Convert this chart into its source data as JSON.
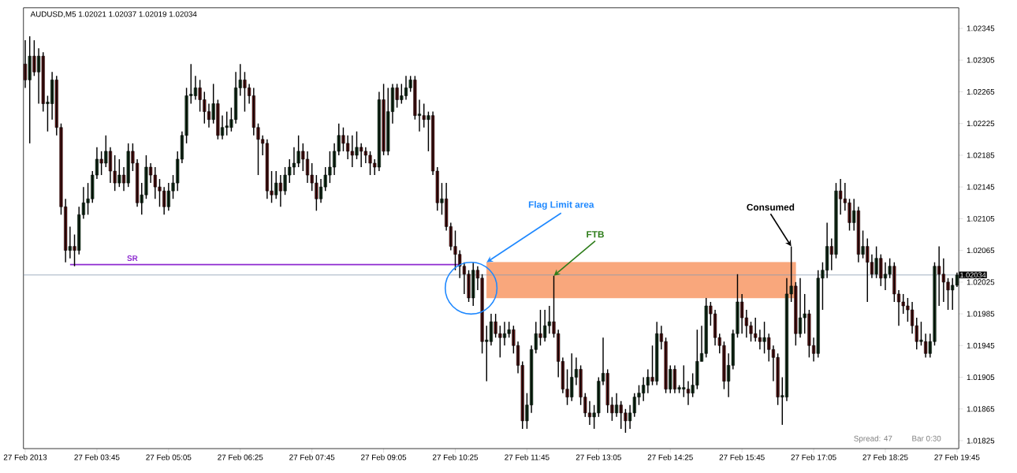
{
  "chart_data": {
    "type": "candlestick",
    "title": "AUDUSD,M5 1.02021 1.02037 1.02019 1.02034",
    "x": [
      "2013-02-27T02:25",
      "2013-02-27T02:30",
      "2013-02-27T02:35",
      "2013-02-27T02:40",
      "2013-02-27T02:45",
      "2013-02-27T02:50",
      "2013-02-27T02:55",
      "2013-02-27T03:00",
      "2013-02-27T03:05",
      "2013-02-27T03:10",
      "2013-02-27T03:15",
      "2013-02-27T03:20",
      "2013-02-27T03:25",
      "2013-02-27T03:30",
      "2013-02-27T03:35",
      "2013-02-27T03:40",
      "2013-02-27T03:45",
      "2013-02-27T03:50",
      "2013-02-27T03:55",
      "2013-02-27T04:00",
      "2013-02-27T04:05",
      "2013-02-27T04:10",
      "2013-02-27T04:15",
      "2013-02-27T04:20",
      "2013-02-27T04:25",
      "2013-02-27T04:30",
      "2013-02-27T04:35",
      "2013-02-27T04:40",
      "2013-02-27T04:45",
      "2013-02-27T04:50",
      "2013-02-27T04:55",
      "2013-02-27T05:00",
      "2013-02-27T05:05",
      "2013-02-27T05:10",
      "2013-02-27T05:15",
      "2013-02-27T05:20",
      "2013-02-27T05:25",
      "2013-02-27T05:30",
      "2013-02-27T05:35",
      "2013-02-27T05:40",
      "2013-02-27T05:45",
      "2013-02-27T05:50",
      "2013-02-27T05:55",
      "2013-02-27T06:00",
      "2013-02-27T06:05",
      "2013-02-27T06:10",
      "2013-02-27T06:15",
      "2013-02-27T06:20",
      "2013-02-27T06:25",
      "2013-02-27T06:30",
      "2013-02-27T06:35",
      "2013-02-27T06:40",
      "2013-02-27T06:45",
      "2013-02-27T06:50",
      "2013-02-27T06:55",
      "2013-02-27T07:00",
      "2013-02-27T07:05",
      "2013-02-27T07:10",
      "2013-02-27T07:15",
      "2013-02-27T07:20",
      "2013-02-27T07:25",
      "2013-02-27T07:30",
      "2013-02-27T07:35",
      "2013-02-27T07:40",
      "2013-02-27T07:45",
      "2013-02-27T07:50",
      "2013-02-27T07:55",
      "2013-02-27T08:00",
      "2013-02-27T08:05",
      "2013-02-27T08:10",
      "2013-02-27T08:15",
      "2013-02-27T08:20",
      "2013-02-27T08:25",
      "2013-02-27T08:30",
      "2013-02-27T08:35",
      "2013-02-27T08:40",
      "2013-02-27T08:45",
      "2013-02-27T08:50",
      "2013-02-27T08:55",
      "2013-02-27T09:00",
      "2013-02-27T09:05",
      "2013-02-27T09:10",
      "2013-02-27T09:15",
      "2013-02-27T09:20",
      "2013-02-27T09:25",
      "2013-02-27T09:30",
      "2013-02-27T09:35",
      "2013-02-27T09:40",
      "2013-02-27T09:45",
      "2013-02-27T09:50",
      "2013-02-27T09:55",
      "2013-02-27T10:00",
      "2013-02-27T10:05",
      "2013-02-27T10:10",
      "2013-02-27T10:15",
      "2013-02-27T10:20",
      "2013-02-27T10:25",
      "2013-02-27T10:30",
      "2013-02-27T10:35",
      "2013-02-27T10:40",
      "2013-02-27T10:45",
      "2013-02-27T10:50",
      "2013-02-27T10:55",
      "2013-02-27T11:00",
      "2013-02-27T11:05",
      "2013-02-27T11:10",
      "2013-02-27T11:15",
      "2013-02-27T11:20",
      "2013-02-27T11:25",
      "2013-02-27T11:30",
      "2013-02-27T11:35",
      "2013-02-27T11:40",
      "2013-02-27T11:45",
      "2013-02-27T11:50",
      "2013-02-27T11:55",
      "2013-02-27T12:00",
      "2013-02-27T12:05",
      "2013-02-27T12:10",
      "2013-02-27T12:15",
      "2013-02-27T12:20",
      "2013-02-27T12:25",
      "2013-02-27T12:30",
      "2013-02-27T12:35",
      "2013-02-27T12:40",
      "2013-02-27T12:45",
      "2013-02-27T12:50",
      "2013-02-27T12:55",
      "2013-02-27T13:00",
      "2013-02-27T13:05",
      "2013-02-27T13:10",
      "2013-02-27T13:15",
      "2013-02-27T13:20",
      "2013-02-27T13:25",
      "2013-02-27T13:30",
      "2013-02-27T13:35",
      "2013-02-27T13:40",
      "2013-02-27T13:45",
      "2013-02-27T13:50",
      "2013-02-27T13:55",
      "2013-02-27T14:00",
      "2013-02-27T14:05",
      "2013-02-27T14:10",
      "2013-02-27T14:15",
      "2013-02-27T14:20",
      "2013-02-27T14:25",
      "2013-02-27T14:30",
      "2013-02-27T14:35",
      "2013-02-27T14:40",
      "2013-02-27T14:45",
      "2013-02-27T14:50",
      "2013-02-27T14:55",
      "2013-02-27T15:00",
      "2013-02-27T15:05",
      "2013-02-27T15:10",
      "2013-02-27T15:15",
      "2013-02-27T15:20",
      "2013-02-27T15:25",
      "2013-02-27T15:30",
      "2013-02-27T15:35",
      "2013-02-27T15:40",
      "2013-02-27T15:45",
      "2013-02-27T15:50",
      "2013-02-27T15:55",
      "2013-02-27T16:00",
      "2013-02-27T16:05",
      "2013-02-27T16:10",
      "2013-02-27T16:15",
      "2013-02-27T16:20",
      "2013-02-27T16:25",
      "2013-02-27T16:30",
      "2013-02-27T16:35",
      "2013-02-27T16:40",
      "2013-02-27T16:45",
      "2013-02-27T16:50",
      "2013-02-27T16:55",
      "2013-02-27T17:00",
      "2013-02-27T17:05",
      "2013-02-27T17:10",
      "2013-02-27T17:15",
      "2013-02-27T17:20",
      "2013-02-27T17:25",
      "2013-02-27T17:30",
      "2013-02-27T17:35",
      "2013-02-27T17:40",
      "2013-02-27T17:45",
      "2013-02-27T17:50",
      "2013-02-27T17:55",
      "2013-02-27T18:00",
      "2013-02-27T18:05",
      "2013-02-27T18:10",
      "2013-02-27T18:15",
      "2013-02-27T18:20",
      "2013-02-27T18:25",
      "2013-02-27T18:30",
      "2013-02-27T18:35",
      "2013-02-27T18:40",
      "2013-02-27T18:45",
      "2013-02-27T18:50",
      "2013-02-27T18:55",
      "2013-02-27T19:00",
      "2013-02-27T19:05",
      "2013-02-27T19:10",
      "2013-02-27T19:15",
      "2013-02-27T19:20",
      "2013-02-27T19:25",
      "2013-02-27T19:30",
      "2013-02-27T19:35",
      "2013-02-27T19:40",
      "2013-02-27T19:45"
    ],
    "ohlc": [
      [
        1.023,
        1.0233,
        1.0227,
        1.0228
      ],
      [
        1.0228,
        1.02335,
        1.022,
        1.0231
      ],
      [
        1.0231,
        1.0233,
        1.02285,
        1.0229
      ],
      [
        1.0229,
        1.0232,
        1.0225,
        1.0231
      ],
      [
        1.0231,
        1.02315,
        1.0224,
        1.0225
      ],
      [
        1.0225,
        1.0226,
        1.02215,
        1.0225
      ],
      [
        1.0225,
        1.0229,
        1.0223,
        1.0228
      ],
      [
        1.0228,
        1.02285,
        1.0221,
        1.0222
      ],
      [
        1.0222,
        1.02225,
        1.0211,
        1.0212
      ],
      [
        1.0212,
        1.0213,
        1.0205,
        1.02065
      ],
      [
        1.02065,
        1.02095,
        1.02055,
        1.0207
      ],
      [
        1.0207,
        1.02085,
        1.02045,
        1.02065
      ],
      [
        1.02065,
        1.0212,
        1.0206,
        1.0211
      ],
      [
        1.0211,
        1.02145,
        1.02105,
        1.02125
      ],
      [
        1.02125,
        1.0215,
        1.0211,
        1.0213
      ],
      [
        1.0213,
        1.02165,
        1.02125,
        1.0216
      ],
      [
        1.0216,
        1.02195,
        1.02155,
        1.0218
      ],
      [
        1.0218,
        1.0219,
        1.0216,
        1.02175
      ],
      [
        1.02175,
        1.0221,
        1.0217,
        1.0219
      ],
      [
        1.0219,
        1.02195,
        1.0215,
        1.02165
      ],
      [
        1.02165,
        1.02185,
        1.0214,
        1.0215
      ],
      [
        1.0215,
        1.0218,
        1.02145,
        1.0216
      ],
      [
        1.0216,
        1.0217,
        1.0214,
        1.0215
      ],
      [
        1.0215,
        1.022,
        1.02145,
        1.0219
      ],
      [
        1.0219,
        1.022,
        1.02165,
        1.02175
      ],
      [
        1.02175,
        1.0218,
        1.0212,
        1.02125
      ],
      [
        1.02125,
        1.0215,
        1.0211,
        1.02135
      ],
      [
        1.02135,
        1.02185,
        1.0213,
        1.0217
      ],
      [
        1.0217,
        1.02175,
        1.0215,
        1.0216
      ],
      [
        1.0216,
        1.0217,
        1.0213,
        1.02145
      ],
      [
        1.02145,
        1.02155,
        1.0212,
        1.0214
      ],
      [
        1.0214,
        1.02145,
        1.0211,
        1.0212
      ],
      [
        1.0212,
        1.0215,
        1.02115,
        1.0214
      ],
      [
        1.0214,
        1.0216,
        1.0213,
        1.0215
      ],
      [
        1.0215,
        1.0219,
        1.0214,
        1.0218
      ],
      [
        1.0218,
        1.02215,
        1.02175,
        1.0221
      ],
      [
        1.0221,
        1.0227,
        1.022,
        1.0226
      ],
      [
        1.0226,
        1.023,
        1.0225,
        1.0226
      ],
      [
        1.0226,
        1.02285,
        1.02255,
        1.0227
      ],
      [
        1.0227,
        1.0228,
        1.0224,
        1.02255
      ],
      [
        1.02255,
        1.02265,
        1.02225,
        1.0224
      ],
      [
        1.0224,
        1.0225,
        1.0222,
        1.0223
      ],
      [
        1.0223,
        1.02275,
        1.02225,
        1.0225
      ],
      [
        1.0225,
        1.02255,
        1.02205,
        1.0221
      ],
      [
        1.0221,
        1.02235,
        1.02205,
        1.0222
      ],
      [
        1.0222,
        1.0224,
        1.0221,
        1.0222
      ],
      [
        1.0222,
        1.02245,
        1.02215,
        1.0223
      ],
      [
        1.0223,
        1.0229,
        1.02225,
        1.0227
      ],
      [
        1.0227,
        1.023,
        1.0226,
        1.0228
      ],
      [
        1.0228,
        1.0229,
        1.0224,
        1.0227
      ],
      [
        1.0227,
        1.02275,
        1.0225,
        1.0226
      ],
      [
        1.0226,
        1.0227,
        1.0221,
        1.0222
      ],
      [
        1.0222,
        1.02225,
        1.0216,
        1.02205
      ],
      [
        1.02205,
        1.0221,
        1.02185,
        1.022
      ],
      [
        1.022,
        1.02205,
        1.0213,
        1.0214
      ],
      [
        1.0214,
        1.02165,
        1.02125,
        1.02135
      ],
      [
        1.02135,
        1.02165,
        1.0213,
        1.0215
      ],
      [
        1.0215,
        1.0216,
        1.0212,
        1.0214
      ],
      [
        1.0214,
        1.0217,
        1.02135,
        1.0216
      ],
      [
        1.0216,
        1.0218,
        1.0215,
        1.0217
      ],
      [
        1.0217,
        1.02195,
        1.0216,
        1.02175
      ],
      [
        1.02175,
        1.0221,
        1.0217,
        1.0219
      ],
      [
        1.0219,
        1.022,
        1.02165,
        1.0218
      ],
      [
        1.0218,
        1.0219,
        1.0215,
        1.0216
      ],
      [
        1.0216,
        1.02175,
        1.0214,
        1.0215
      ],
      [
        1.0215,
        1.0216,
        1.02115,
        1.0213
      ],
      [
        1.0213,
        1.02155,
        1.02125,
        1.02145
      ],
      [
        1.02145,
        1.0217,
        1.0214,
        1.0216
      ],
      [
        1.0216,
        1.0219,
        1.0215,
        1.0217
      ],
      [
        1.0217,
        1.022,
        1.0216,
        1.0219
      ],
      [
        1.0219,
        1.02225,
        1.02185,
        1.0221
      ],
      [
        1.0221,
        1.0222,
        1.0219,
        1.022
      ],
      [
        1.022,
        1.0221,
        1.0218,
        1.0219
      ],
      [
        1.0219,
        1.0221,
        1.0217,
        1.02185
      ],
      [
        1.02185,
        1.02215,
        1.0218,
        1.02195
      ],
      [
        1.02195,
        1.022,
        1.0217,
        1.0219
      ],
      [
        1.0219,
        1.02195,
        1.02175,
        1.02185
      ],
      [
        1.02185,
        1.0219,
        1.0216,
        1.02175
      ],
      [
        1.02175,
        1.0218,
        1.0216,
        1.0217
      ],
      [
        1.0217,
        1.02265,
        1.02165,
        1.02255
      ],
      [
        1.02255,
        1.02275,
        1.02185,
        1.0219
      ],
      [
        1.0219,
        1.0227,
        1.02185,
        1.0224
      ],
      [
        1.0224,
        1.02275,
        1.02225,
        1.0227
      ],
      [
        1.0227,
        1.02275,
        1.02245,
        1.02255
      ],
      [
        1.02255,
        1.02275,
        1.0225,
        1.0226
      ],
      [
        1.0226,
        1.02285,
        1.02255,
        1.0227
      ],
      [
        1.0227,
        1.02285,
        1.02265,
        1.0228
      ],
      [
        1.0228,
        1.02285,
        1.0223,
        1.02235
      ],
      [
        1.02235,
        1.02255,
        1.02215,
        1.02235
      ],
      [
        1.02235,
        1.0225,
        1.0222,
        1.0223
      ],
      [
        1.0223,
        1.0224,
        1.0219,
        1.02235
      ],
      [
        1.02235,
        1.0224,
        1.0216,
        1.02165
      ],
      [
        1.02165,
        1.0217,
        1.02115,
        1.02125
      ],
      [
        1.02125,
        1.0215,
        1.0211,
        1.0213
      ],
      [
        1.0213,
        1.0215,
        1.0209,
        1.02095
      ],
      [
        1.02095,
        1.021,
        1.02065,
        1.0207
      ],
      [
        1.0207,
        1.0209,
        1.0204,
        1.0206
      ],
      [
        1.0206,
        1.02065,
        1.0203,
        1.02045
      ],
      [
        1.02045,
        1.0205,
        1.0201,
        1.02035
      ],
      [
        1.02035,
        1.0204,
        1.02,
        1.02005
      ],
      [
        1.02005,
        1.0205,
        1.01995,
        1.0204
      ],
      [
        1.0204,
        1.02045,
        1.02015,
        1.0203
      ],
      [
        1.0203,
        1.02035,
        1.01935,
        1.0195
      ],
      [
        1.0195,
        1.0197,
        1.019,
        1.0195
      ],
      [
        1.0195,
        1.01985,
        1.01945,
        1.01975
      ],
      [
        1.01975,
        1.01985,
        1.01955,
        1.0196
      ],
      [
        1.0196,
        1.0197,
        1.0193,
        1.01955
      ],
      [
        1.01955,
        1.01975,
        1.01945,
        1.0196
      ],
      [
        1.0196,
        1.01975,
        1.01955,
        1.01965
      ],
      [
        1.01965,
        1.0197,
        1.01935,
        1.01945
      ],
      [
        1.01945,
        1.0195,
        1.0191,
        1.0192
      ],
      [
        1.0192,
        1.01925,
        1.0184,
        1.0185
      ],
      [
        1.0185,
        1.01885,
        1.0184,
        1.0187
      ],
      [
        1.0187,
        1.01945,
        1.0186,
        1.0194
      ],
      [
        1.0194,
        1.01975,
        1.01935,
        1.0196
      ],
      [
        1.0196,
        1.0199,
        1.01945,
        1.01955
      ],
      [
        1.01955,
        1.0199,
        1.0195,
        1.0197
      ],
      [
        1.0197,
        1.01995,
        1.0196,
        1.01975
      ],
      [
        1.01975,
        1.02033,
        1.01955,
        1.0196
      ],
      [
        1.0196,
        1.01965,
        1.01905,
        1.01925
      ],
      [
        1.01925,
        1.0193,
        1.01885,
        1.0189
      ],
      [
        1.0189,
        1.01915,
        1.0187,
        1.0188
      ],
      [
        1.0188,
        1.01935,
        1.01875,
        1.01905
      ],
      [
        1.01905,
        1.0193,
        1.01895,
        1.01915
      ],
      [
        1.01915,
        1.0192,
        1.0187,
        1.0188
      ],
      [
        1.0188,
        1.01885,
        1.01855,
        1.0186
      ],
      [
        1.0186,
        1.01875,
        1.01845,
        1.01855
      ],
      [
        1.01855,
        1.0187,
        1.0184,
        1.0186
      ],
      [
        1.0186,
        1.01905,
        1.01855,
        1.019
      ],
      [
        1.019,
        1.01955,
        1.01895,
        1.0191
      ],
      [
        1.0191,
        1.01915,
        1.0186,
        1.0187
      ],
      [
        1.0187,
        1.0188,
        1.0185,
        1.0186
      ],
      [
        1.0186,
        1.01885,
        1.01855,
        1.0187
      ],
      [
        1.0187,
        1.01875,
        1.0184,
        1.0186
      ],
      [
        1.0186,
        1.01865,
        1.01835,
        1.0185
      ],
      [
        1.0185,
        1.0187,
        1.0184,
        1.0186
      ],
      [
        1.0186,
        1.01885,
        1.01855,
        1.0188
      ],
      [
        1.0188,
        1.01895,
        1.0187,
        1.01885
      ],
      [
        1.01885,
        1.01905,
        1.01875,
        1.01895
      ],
      [
        1.01895,
        1.01915,
        1.01885,
        1.01905
      ],
      [
        1.01905,
        1.01945,
        1.01895,
        1.019
      ],
      [
        1.019,
        1.01975,
        1.01895,
        1.0196
      ],
      [
        1.0196,
        1.0197,
        1.0194,
        1.0195
      ],
      [
        1.0195,
        1.01955,
        1.01885,
        1.0189
      ],
      [
        1.0189,
        1.0192,
        1.01885,
        1.01915
      ],
      [
        1.01915,
        1.0192,
        1.01885,
        1.0189
      ],
      [
        1.0189,
        1.01895,
        1.01885,
        1.0189
      ],
      [
        1.0189,
        1.0192,
        1.0188,
        1.0189
      ],
      [
        1.0189,
        1.019,
        1.0187,
        1.01885
      ],
      [
        1.01885,
        1.0191,
        1.0188,
        1.01895
      ],
      [
        1.01895,
        1.01965,
        1.0189,
        1.01925
      ],
      [
        1.01925,
        1.0197,
        1.01925,
        1.01935
      ],
      [
        1.01935,
        1.02005,
        1.0193,
        1.01995
      ],
      [
        1.01995,
        1.02,
        1.0197,
        1.01985
      ],
      [
        1.01985,
        1.0199,
        1.01945,
        1.01955
      ],
      [
        1.01955,
        1.0196,
        1.01935,
        1.01945
      ],
      [
        1.01945,
        1.0195,
        1.0189,
        1.019
      ],
      [
        1.019,
        1.01935,
        1.0188,
        1.0192
      ],
      [
        1.0192,
        1.01965,
        1.01915,
        1.0196
      ],
      [
        1.0196,
        1.02035,
        1.01955,
        1.02
      ],
      [
        1.02,
        1.0201,
        1.0196,
        1.0198
      ],
      [
        1.0198,
        1.0199,
        1.01955,
        1.0197
      ],
      [
        1.0197,
        1.01975,
        1.0195,
        1.0196
      ],
      [
        1.0196,
        1.0198,
        1.0195,
        1.01955
      ],
      [
        1.01955,
        1.01965,
        1.0194,
        1.0195
      ],
      [
        1.0195,
        1.01975,
        1.01935,
        1.01955
      ],
      [
        1.01955,
        1.0196,
        1.01925,
        1.0194
      ],
      [
        1.0194,
        1.01945,
        1.019,
        1.0193
      ],
      [
        1.0193,
        1.01935,
        1.0187,
        1.0188
      ],
      [
        1.0188,
        1.01905,
        1.01845,
        1.0188
      ],
      [
        1.0188,
        1.0203,
        1.01875,
        1.0201
      ],
      [
        1.0201,
        1.0207,
        1.02,
        1.0202
      ],
      [
        1.0202,
        1.02025,
        1.01945,
        1.0196
      ],
      [
        1.0196,
        1.0203,
        1.01955,
        1.0198
      ],
      [
        1.0198,
        1.0201,
        1.0196,
        1.01985
      ],
      [
        1.01985,
        1.0199,
        1.0193,
        1.01945
      ],
      [
        1.01945,
        1.01955,
        1.01925,
        1.01935
      ],
      [
        1.01935,
        1.0204,
        1.0193,
        1.0203
      ],
      [
        1.0203,
        1.0205,
        1.0199,
        1.0204
      ],
      [
        1.0204,
        1.021,
        1.0203,
        1.0207
      ],
      [
        1.0207,
        1.0208,
        1.0204,
        1.0206
      ],
      [
        1.0206,
        1.0215,
        1.02055,
        1.0214
      ],
      [
        1.0214,
        1.02155,
        1.0211,
        1.0213
      ],
      [
        1.0213,
        1.0215,
        1.02115,
        1.02125
      ],
      [
        1.02125,
        1.0213,
        1.0209,
        1.021
      ],
      [
        1.021,
        1.0213,
        1.0209,
        1.02115
      ],
      [
        1.02115,
        1.0212,
        1.0205,
        1.0206
      ],
      [
        1.0206,
        1.0209,
        1.02055,
        1.0207
      ],
      [
        1.0207,
        1.0208,
        1.02,
        1.0205
      ],
      [
        1.0205,
        1.0206,
        1.0203,
        1.02035
      ],
      [
        1.02035,
        1.0207,
        1.0203,
        1.02055
      ],
      [
        1.02055,
        1.0206,
        1.0202,
        1.0203
      ],
      [
        1.0203,
        1.0205,
        1.02015,
        1.02035
      ],
      [
        1.02035,
        1.02055,
        1.0203,
        1.02045
      ],
      [
        1.02045,
        1.0205,
        1.02,
        1.0201
      ],
      [
        1.0201,
        1.02015,
        1.0197,
        1.02
      ],
      [
        1.02,
        1.0201,
        1.01985,
        1.01995
      ],
      [
        1.01995,
        1.02005,
        1.01975,
        1.0199
      ],
      [
        1.0199,
        1.02,
        1.0196,
        1.0197
      ],
      [
        1.0197,
        1.0198,
        1.0194,
        1.0195
      ],
      [
        1.0195,
        1.01975,
        1.01945,
        1.0195
      ],
      [
        1.0195,
        1.0196,
        1.0193,
        1.01935
      ],
      [
        1.01935,
        1.0196,
        1.0193,
        1.0195
      ],
      [
        1.0195,
        1.0205,
        1.01945,
        1.02045
      ],
      [
        1.02045,
        1.0207,
        1.01995,
        1.02035
      ],
      [
        1.02035,
        1.02055,
        1.02,
        1.02025
      ],
      [
        1.02025,
        1.0203,
        1.0199,
        1.02015
      ],
      [
        1.02015,
        1.0203,
        1.0199,
        1.02021
      ],
      [
        1.02021,
        1.02037,
        1.02019,
        1.02034
      ]
    ],
    "series": [
      {
        "type": "line",
        "x": [
          "2013-02-27T11:00",
          "2013-02-27T16:45"
        ],
        "values": [
          null,
          null
        ],
        "lower": [
          1.02005,
          1.02005
        ],
        "upper": [
          1.0205,
          1.0205
        ],
        "color": "#f9a77c"
      },
      {
        "type": "line",
        "name": "SR",
        "x": [
          "2013-02-27T03:15",
          "2013-02-27T10:30"
        ],
        "values": [
          1.02047,
          1.02047
        ],
        "color": "#8e2bd1"
      }
    ],
    "ref_lines": [
      {
        "axis": "y",
        "value": 1.02034,
        "label": "1.02034",
        "color": "#8a9bb0"
      }
    ],
    "annotations": [
      {
        "text": "Flag Limit area",
        "x": "2013-02-27T11:00",
        "y": 1.0205
      },
      {
        "text": "FTB",
        "x": "2013-02-27T12:15",
        "y": 1.02033
      },
      {
        "text": "Consumed",
        "x": "2013-02-27T16:40",
        "y": 1.0207
      },
      "Spread: 47",
      "Bar  0:30"
    ],
    "xlim": [
      "2013-02-27T02:23",
      "2013-02-27T19:47"
    ],
    "ylim": [
      1.01815,
      1.02371
    ],
    "xticks": [
      {
        "value": "2013-02-27T02:25",
        "label": "27 Feb 2013"
      },
      {
        "value": "2013-02-27T03:45",
        "label": "27 Feb 03:45"
      },
      {
        "value": "2013-02-27T05:05",
        "label": "27 Feb 05:05"
      },
      {
        "value": "2013-02-27T06:25",
        "label": "27 Feb 06:25"
      },
      {
        "value": "2013-02-27T07:45",
        "label": "27 Feb 07:45"
      },
      {
        "value": "2013-02-27T09:05",
        "label": "27 Feb 09:05"
      },
      {
        "value": "2013-02-27T10:25",
        "label": "27 Feb 10:25"
      },
      {
        "value": "2013-02-27T11:45",
        "label": "27 Feb 11:45"
      },
      {
        "value": "2013-02-27T13:05",
        "label": "27 Feb 13:05"
      },
      {
        "value": "2013-02-27T14:25",
        "label": "27 Feb 14:25"
      },
      {
        "value": "2013-02-27T15:45",
        "label": "27 Feb 15:45"
      },
      {
        "value": "2013-02-27T17:05",
        "label": "27 Feb 17:05"
      },
      {
        "value": "2013-02-27T18:25",
        "label": "27 Feb 18:25"
      },
      {
        "value": "2013-02-27T19:45",
        "label": "27 Feb 19:45"
      }
    ],
    "yticks": [
      1.02345,
      1.02305,
      1.02265,
      1.02225,
      1.02185,
      1.02145,
      1.02105,
      1.02065,
      1.02025,
      1.01985,
      1.01945,
      1.01905,
      1.01865,
      1.01825
    ]
  }
}
